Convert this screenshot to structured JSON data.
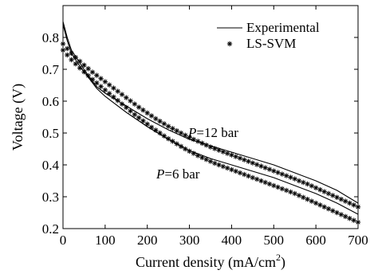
{
  "chart_data": {
    "type": "line",
    "xlabel_main": "Current density (mA/cm",
    "xlabel_sup": "2",
    "xlabel_end": ")",
    "ylabel": "Voltage (V)",
    "xlim": [
      0,
      700
    ],
    "ylim": [
      0.2,
      0.9
    ],
    "xticks": [
      "0",
      "100",
      "200",
      "300",
      "400",
      "500",
      "600",
      "700"
    ],
    "yticks": [
      "0.2",
      "0.3",
      "0.4",
      "0.5",
      "0.6",
      "0.7",
      "0.8"
    ],
    "grid": false,
    "legend_position": "top-right",
    "legend": [
      "Experimental",
      "LS-SVM"
    ],
    "annotations": [
      {
        "prefix": "P",
        "text": "=12 bar"
      },
      {
        "prefix": "P",
        "text": "=6 bar"
      }
    ],
    "series": [
      {
        "style": "solid-line",
        "group": "12 bar",
        "x": [
          0,
          10,
          20,
          40,
          60,
          80,
          100,
          150,
          200,
          250,
          300,
          350,
          400,
          450,
          500,
          550,
          600,
          650,
          700
        ],
        "y": [
          0.85,
          0.8,
          0.76,
          0.72,
          0.68,
          0.645,
          0.625,
          0.585,
          0.545,
          0.51,
          0.48,
          0.46,
          0.44,
          0.42,
          0.4,
          0.375,
          0.35,
          0.32,
          0.28
        ]
      },
      {
        "style": "solid-line",
        "group": "6 bar",
        "x": [
          0,
          10,
          20,
          40,
          60,
          80,
          100,
          150,
          200,
          250,
          300,
          350,
          400,
          450,
          500,
          550,
          600,
          650,
          700
        ],
        "y": [
          0.84,
          0.79,
          0.75,
          0.71,
          0.675,
          0.64,
          0.615,
          0.565,
          0.52,
          0.48,
          0.445,
          0.42,
          0.4,
          0.38,
          0.36,
          0.335,
          0.31,
          0.28,
          0.245
        ]
      },
      {
        "style": "star-markers",
        "group": "12 bar",
        "x": [
          0,
          10,
          20,
          30,
          40,
          50,
          60,
          70,
          80,
          90,
          100,
          110,
          120,
          130,
          140,
          150,
          160,
          170,
          180,
          190,
          200,
          210,
          220,
          230,
          240,
          250,
          260,
          270,
          280,
          290,
          300,
          310,
          320,
          330,
          340,
          350,
          360,
          370,
          380,
          390,
          400,
          410,
          420,
          430,
          440,
          450,
          460,
          470,
          480,
          490,
          500,
          510,
          520,
          530,
          540,
          550,
          560,
          570,
          580,
          590,
          600,
          610,
          620,
          630,
          640,
          650,
          660,
          670,
          680,
          690,
          700
        ],
        "y": [
          0.78,
          0.765,
          0.75,
          0.737,
          0.725,
          0.713,
          0.702,
          0.691,
          0.681,
          0.671,
          0.661,
          0.651,
          0.641,
          0.631,
          0.621,
          0.611,
          0.601,
          0.591,
          0.581,
          0.572,
          0.563,
          0.554,
          0.545,
          0.537,
          0.529,
          0.521,
          0.514,
          0.507,
          0.5,
          0.493,
          0.486,
          0.48,
          0.474,
          0.468,
          0.462,
          0.456,
          0.451,
          0.446,
          0.441,
          0.436,
          0.431,
          0.426,
          0.421,
          0.416,
          0.411,
          0.406,
          0.401,
          0.396,
          0.391,
          0.386,
          0.381,
          0.376,
          0.371,
          0.366,
          0.361,
          0.356,
          0.35,
          0.345,
          0.34,
          0.334,
          0.328,
          0.322,
          0.316,
          0.31,
          0.304,
          0.298,
          0.292,
          0.286,
          0.28,
          0.274,
          0.268
        ]
      },
      {
        "style": "star-markers",
        "group": "6 bar",
        "x": [
          0,
          10,
          20,
          30,
          40,
          50,
          60,
          70,
          80,
          90,
          100,
          110,
          120,
          130,
          140,
          150,
          160,
          170,
          180,
          190,
          200,
          210,
          220,
          230,
          240,
          250,
          260,
          270,
          280,
          290,
          300,
          310,
          320,
          330,
          340,
          350,
          360,
          370,
          380,
          390,
          400,
          410,
          420,
          430,
          440,
          450,
          460,
          470,
          480,
          490,
          500,
          510,
          520,
          530,
          540,
          550,
          560,
          570,
          580,
          590,
          600,
          610,
          620,
          630,
          640,
          650,
          660,
          670,
          680,
          690,
          700
        ],
        "y": [
          0.76,
          0.745,
          0.73,
          0.717,
          0.704,
          0.692,
          0.68,
          0.668,
          0.657,
          0.646,
          0.635,
          0.624,
          0.613,
          0.602,
          0.591,
          0.58,
          0.569,
          0.558,
          0.548,
          0.538,
          0.528,
          0.518,
          0.509,
          0.5,
          0.491,
          0.482,
          0.474,
          0.466,
          0.458,
          0.45,
          0.443,
          0.436,
          0.429,
          0.423,
          0.417,
          0.411,
          0.405,
          0.4,
          0.395,
          0.39,
          0.385,
          0.38,
          0.375,
          0.37,
          0.365,
          0.36,
          0.355,
          0.35,
          0.345,
          0.34,
          0.335,
          0.33,
          0.325,
          0.32,
          0.315,
          0.31,
          0.304,
          0.298,
          0.292,
          0.286,
          0.28,
          0.274,
          0.268,
          0.262,
          0.256,
          0.25,
          0.244,
          0.238,
          0.232,
          0.226,
          0.22
        ]
      }
    ]
  }
}
